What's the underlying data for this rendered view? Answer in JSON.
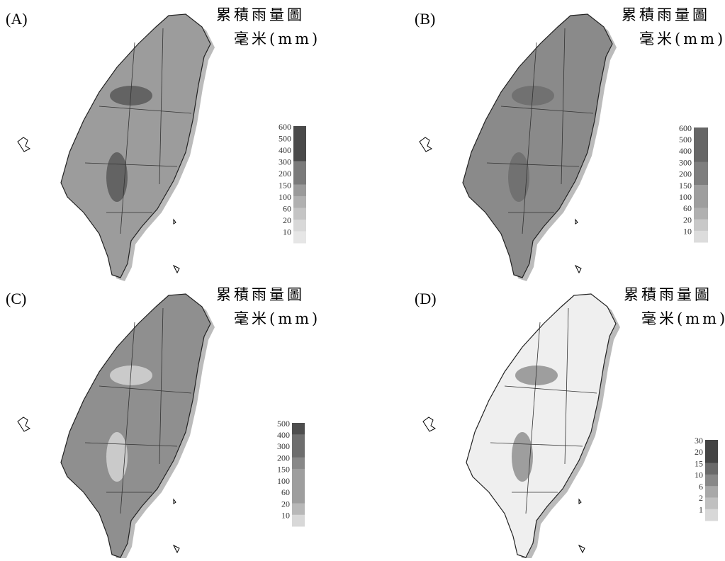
{
  "panels": [
    {
      "label": "(A)",
      "title": "累積雨量圖",
      "unit": "毫米(mm)",
      "legend": [
        "600",
        "500",
        "400",
        "300",
        "200",
        "150",
        "100",
        "60",
        "20",
        "10"
      ]
    },
    {
      "label": "(B)",
      "title": "累積雨量圖",
      "unit": "毫米(mm)",
      "legend": [
        "600",
        "500",
        "400",
        "300",
        "200",
        "150",
        "100",
        "60",
        "20",
        "10"
      ]
    },
    {
      "label": "(C)",
      "title": "累積雨量圖",
      "unit": "毫米(mm)",
      "legend": [
        "500",
        "400",
        "300",
        "200",
        "150",
        "100",
        "60",
        "20",
        "10"
      ]
    },
    {
      "label": "(D)",
      "title": "累積雨量圖",
      "unit": "毫米(mm)",
      "legend": [
        "30",
        "20",
        "15",
        "10",
        "6",
        "2",
        "1"
      ]
    }
  ]
}
